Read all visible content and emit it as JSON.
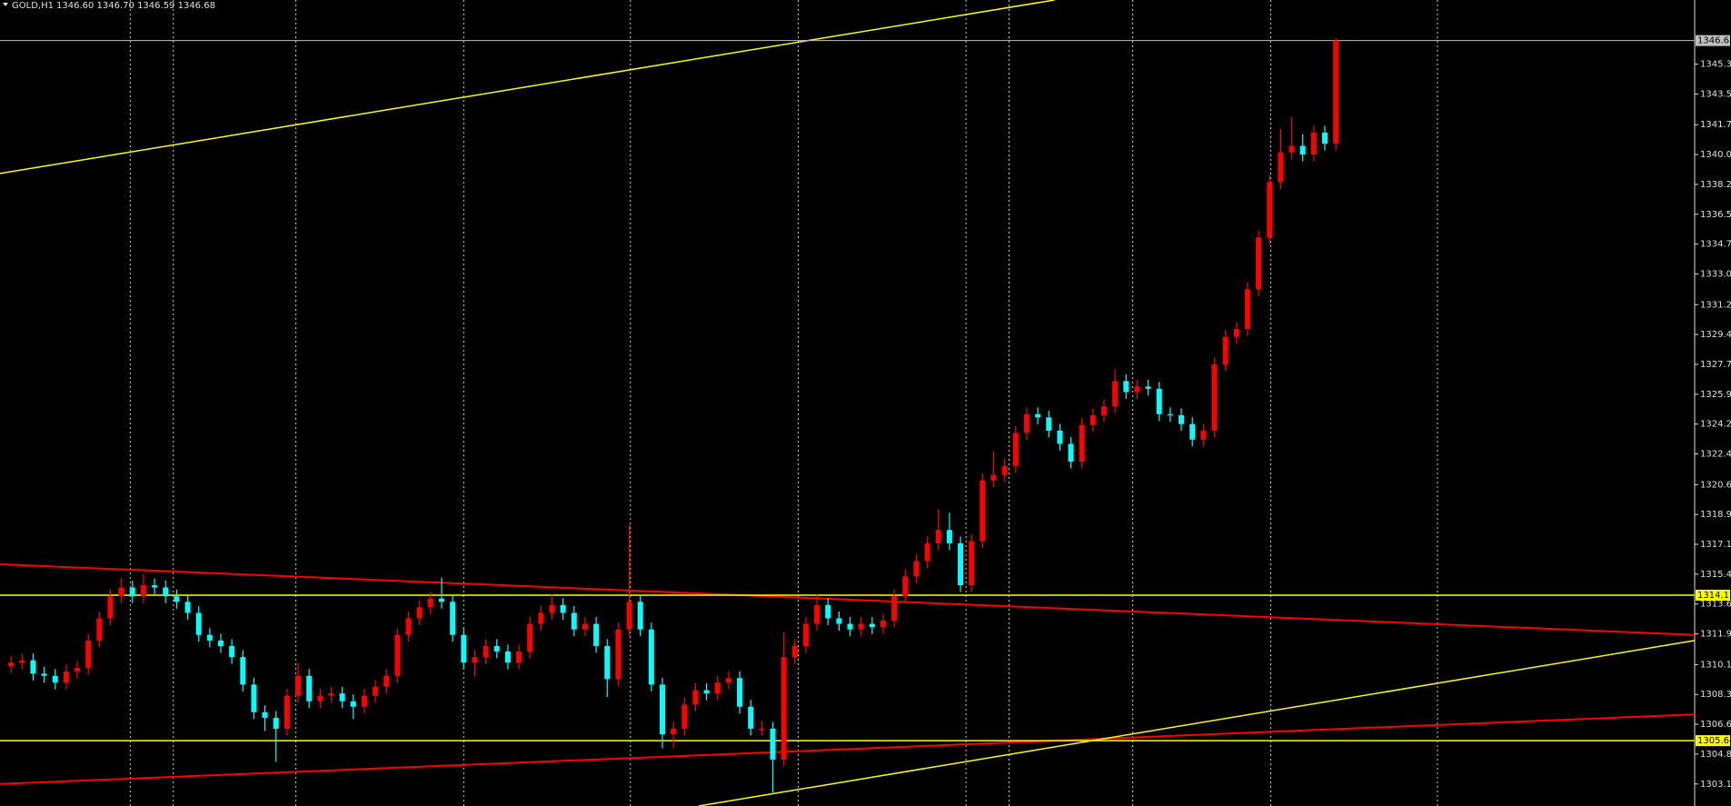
{
  "chart_data": {
    "type": "candlestick",
    "title": "GOLD,H1",
    "quote": "1346.60 1346.70 1346.59 1346.68",
    "up_color": "#ff0000",
    "down_color": "#00ffff",
    "ylim": [
      1301.81,
      1349.06
    ],
    "yticks": [
      {
        "value": 1303.1,
        "label": "1303.10"
      },
      {
        "value": 1304.85,
        "label": "1304.85"
      },
      {
        "value": 1306.6,
        "label": "1306.60"
      },
      {
        "value": 1308.35,
        "label": "1308.35"
      },
      {
        "value": 1310.1,
        "label": "1310.10"
      },
      {
        "value": 1311.9,
        "label": "1311.90"
      },
      {
        "value": 1313.65,
        "label": "1313.65"
      },
      {
        "value": 1315.4,
        "label": "1315.40"
      },
      {
        "value": 1317.15,
        "label": "1317.15"
      },
      {
        "value": 1318.9,
        "label": "1318.90"
      },
      {
        "value": 1320.65,
        "label": "1320.65"
      },
      {
        "value": 1322.45,
        "label": "1322.45"
      },
      {
        "value": 1324.2,
        "label": "1324.20"
      },
      {
        "value": 1325.95,
        "label": "1325.95"
      },
      {
        "value": 1327.7,
        "label": "1327.70"
      },
      {
        "value": 1329.45,
        "label": "1329.45"
      },
      {
        "value": 1331.2,
        "label": "1331.20"
      },
      {
        "value": 1333,
        "label": "1333.00"
      },
      {
        "value": 1334.75,
        "label": "1334.75"
      },
      {
        "value": 1336.5,
        "label": "1336.50"
      },
      {
        "value": 1338.25,
        "label": "1338.25"
      },
      {
        "value": 1340,
        "label": "1340.00"
      },
      {
        "value": 1341.75,
        "label": "1341.75"
      },
      {
        "value": 1343.55,
        "label": "1343.55"
      },
      {
        "value": 1345.3,
        "label": "1345.30"
      }
    ],
    "open": [
      1310.0,
      1310.22,
      1310.35,
      1309.57,
      1309.44,
      1309.05,
      1309.7,
      1309.9,
      1311.51,
      1312.81,
      1314.1,
      1314.62,
      1314.1,
      1314.75,
      1314.62,
      1314.1,
      1313.78,
      1313.13,
      1311.84,
      1311.51,
      1311.19,
      1310.54,
      1308.93,
      1307.31,
      1306.98,
      1306.34,
      1308.28,
      1309.44,
      1307.95,
      1308.28,
      1308.41,
      1307.95,
      1307.63,
      1308.28,
      1308.8,
      1309.44,
      1311.84,
      1312.81,
      1313.46,
      1313.97,
      1313.78,
      1311.84,
      1310.22,
      1310.54,
      1311.19,
      1310.87,
      1310.22,
      1310.87,
      1312.49,
      1313.13,
      1313.59,
      1313.13,
      1312.16,
      1312.49,
      1311.19,
      1309.25,
      1312.16,
      1313.78,
      1312.16,
      1308.93,
      1306.01,
      1306.34,
      1307.76,
      1308.6,
      1308.41,
      1309.05,
      1309.31,
      1307.63,
      1306.34,
      1306.34,
      1304.53,
      1310.54,
      1311.19,
      1312.49,
      1313.59,
      1312.81,
      1312.49,
      1312.16,
      1312.49,
      1312.29,
      1312.68,
      1314.1,
      1315.27,
      1316.17,
      1317.21,
      1317.99,
      1317.21,
      1314.75,
      1317.34,
      1320.9,
      1321.22,
      1321.74,
      1323.68,
      1324.78,
      1324.59,
      1323.81,
      1323.04,
      1322.0,
      1324.14,
      1324.72,
      1325.24,
      1326.72,
      1326.08,
      1326.4,
      1326.27,
      1324.78,
      1324.72,
      1324.2,
      1323.29,
      1323.81,
      1327.7,
      1329.31,
      1329.77,
      1332.1,
      1335.14,
      1338.38,
      1340.12,
      1340.51,
      1340.0,
      1341.29,
      1340.64
    ],
    "high": [
      1310.62,
      1310.75,
      1310.75,
      1309.97,
      1309.84,
      1310.1,
      1310.3,
      1311.91,
      1313.21,
      1314.5,
      1315.2,
      1315.02,
      1315.4,
      1315.15,
      1315.02,
      1314.5,
      1314.18,
      1313.53,
      1312.24,
      1311.91,
      1311.59,
      1310.94,
      1309.33,
      1307.71,
      1307.38,
      1308.68,
      1310.2,
      1309.84,
      1308.68,
      1308.81,
      1308.81,
      1308.35,
      1308.68,
      1309.2,
      1309.84,
      1312.24,
      1313.21,
      1313.86,
      1314.37,
      1315.2,
      1314.18,
      1312.24,
      1310.94,
      1311.59,
      1311.59,
      1311.27,
      1311.27,
      1312.89,
      1313.53,
      1314.2,
      1313.99,
      1313.53,
      1312.89,
      1312.89,
      1311.59,
      1312.56,
      1318.3,
      1314.18,
      1312.56,
      1309.33,
      1306.74,
      1308.16,
      1309.0,
      1309.0,
      1309.45,
      1309.71,
      1309.71,
      1308.03,
      1306.8,
      1306.74,
      1312.0,
      1311.59,
      1312.89,
      1314.2,
      1313.99,
      1313.21,
      1312.89,
      1312.89,
      1312.89,
      1313.08,
      1314.5,
      1315.67,
      1316.57,
      1317.61,
      1319.2,
      1319.0,
      1317.61,
      1317.74,
      1321.3,
      1322.6,
      1322.14,
      1324.08,
      1325.18,
      1325.18,
      1324.99,
      1324.21,
      1323.44,
      1324.54,
      1325.12,
      1325.64,
      1327.4,
      1327.12,
      1326.8,
      1326.8,
      1326.67,
      1325.18,
      1325.12,
      1324.6,
      1324.21,
      1328.1,
      1329.71,
      1330.17,
      1332.5,
      1335.54,
      1338.78,
      1341.5,
      1342.2,
      1341.2,
      1341.69,
      1341.69,
      1346.8
    ],
    "low": [
      1309.6,
      1309.82,
      1309.17,
      1309.04,
      1308.65,
      1308.65,
      1309.3,
      1309.5,
      1311.11,
      1312.41,
      1313.7,
      1313.7,
      1313.7,
      1314.22,
      1313.7,
      1313.38,
      1312.73,
      1311.44,
      1311.11,
      1310.79,
      1310.14,
      1308.53,
      1306.91,
      1306.2,
      1304.4,
      1305.94,
      1307.88,
      1307.55,
      1307.55,
      1307.88,
      1307.55,
      1306.9,
      1307.23,
      1307.88,
      1308.4,
      1309.04,
      1311.44,
      1312.41,
      1313.06,
      1313.38,
      1311.44,
      1309.82,
      1309.4,
      1310.14,
      1310.47,
      1309.82,
      1309.82,
      1310.47,
      1312.09,
      1312.73,
      1312.73,
      1311.76,
      1311.76,
      1310.79,
      1308.2,
      1308.85,
      1311.76,
      1311.76,
      1308.53,
      1305.2,
      1305.2,
      1305.94,
      1307.36,
      1308.01,
      1308.01,
      1308.65,
      1307.23,
      1305.94,
      1305.94,
      1302.6,
      1304.13,
      1310.14,
      1310.79,
      1312.09,
      1312.41,
      1312.09,
      1311.76,
      1311.76,
      1311.89,
      1311.89,
      1312.28,
      1313.7,
      1314.87,
      1315.77,
      1316.81,
      1316.81,
      1314.35,
      1314.35,
      1316.94,
      1320.5,
      1320.82,
      1321.34,
      1323.28,
      1324.19,
      1323.41,
      1322.64,
      1321.6,
      1321.6,
      1323.74,
      1324.32,
      1324.84,
      1325.68,
      1325.68,
      1325.87,
      1324.38,
      1324.32,
      1323.8,
      1322.89,
      1322.89,
      1323.41,
      1327.3,
      1328.91,
      1329.37,
      1331.7,
      1334.74,
      1337.98,
      1339.72,
      1339.6,
      1339.6,
      1340.24,
      1340.24
    ],
    "close": [
      1310.22,
      1310.35,
      1309.57,
      1309.44,
      1309.05,
      1309.7,
      1309.9,
      1311.51,
      1312.81,
      1314.1,
      1314.62,
      1314.1,
      1314.75,
      1314.62,
      1314.1,
      1313.78,
      1313.13,
      1311.84,
      1311.51,
      1311.19,
      1310.54,
      1308.93,
      1307.31,
      1306.98,
      1306.34,
      1308.28,
      1309.44,
      1307.95,
      1308.28,
      1308.41,
      1307.95,
      1307.63,
      1308.28,
      1308.8,
      1309.44,
      1311.84,
      1312.81,
      1313.46,
      1313.97,
      1313.78,
      1311.84,
      1310.22,
      1310.54,
      1311.19,
      1310.87,
      1310.22,
      1310.87,
      1312.49,
      1313.13,
      1313.59,
      1313.13,
      1312.16,
      1312.49,
      1311.19,
      1309.25,
      1312.16,
      1313.78,
      1312.16,
      1308.93,
      1306.01,
      1306.34,
      1307.76,
      1308.6,
      1308.41,
      1309.05,
      1309.31,
      1307.63,
      1306.34,
      1306.34,
      1304.53,
      1310.54,
      1311.19,
      1312.49,
      1313.59,
      1312.81,
      1312.49,
      1312.16,
      1312.49,
      1312.29,
      1312.68,
      1314.1,
      1315.27,
      1316.17,
      1317.21,
      1317.99,
      1317.21,
      1314.75,
      1317.34,
      1320.9,
      1321.22,
      1321.74,
      1323.68,
      1324.78,
      1324.59,
      1323.81,
      1323.04,
      1322.0,
      1324.14,
      1324.72,
      1325.24,
      1326.72,
      1326.08,
      1326.4,
      1326.27,
      1324.78,
      1324.72,
      1324.2,
      1323.29,
      1323.81,
      1327.7,
      1329.31,
      1329.77,
      1332.1,
      1335.14,
      1338.38,
      1340.12,
      1340.51,
      1340.0,
      1341.29,
      1340.64,
      1346.68
    ],
    "hlines": [
      {
        "value": 1346.68,
        "color": "#c0c0c0"
      },
      {
        "value": 1314.17,
        "color": "#ffff00"
      },
      {
        "value": 1305.64,
        "color": "#ffff00"
      }
    ],
    "trendlines": [
      {
        "color": "#ffff00",
        "points": [
          [
            -1,
            1338.89
          ],
          [
            94.5,
            1349.06
          ]
        ]
      },
      {
        "color": "#ff0000",
        "points": [
          [
            -1,
            1315.98
          ],
          [
            152.5,
            1311.84
          ]
        ]
      },
      {
        "color": "#ff0000",
        "points": [
          [
            -1,
            1303.1
          ],
          [
            152.5,
            1307.18
          ]
        ]
      },
      {
        "color": "#ffff00",
        "points": [
          [
            62.3,
            1301.81
          ],
          [
            152.5,
            1311.51
          ]
        ]
      }
    ]
  }
}
